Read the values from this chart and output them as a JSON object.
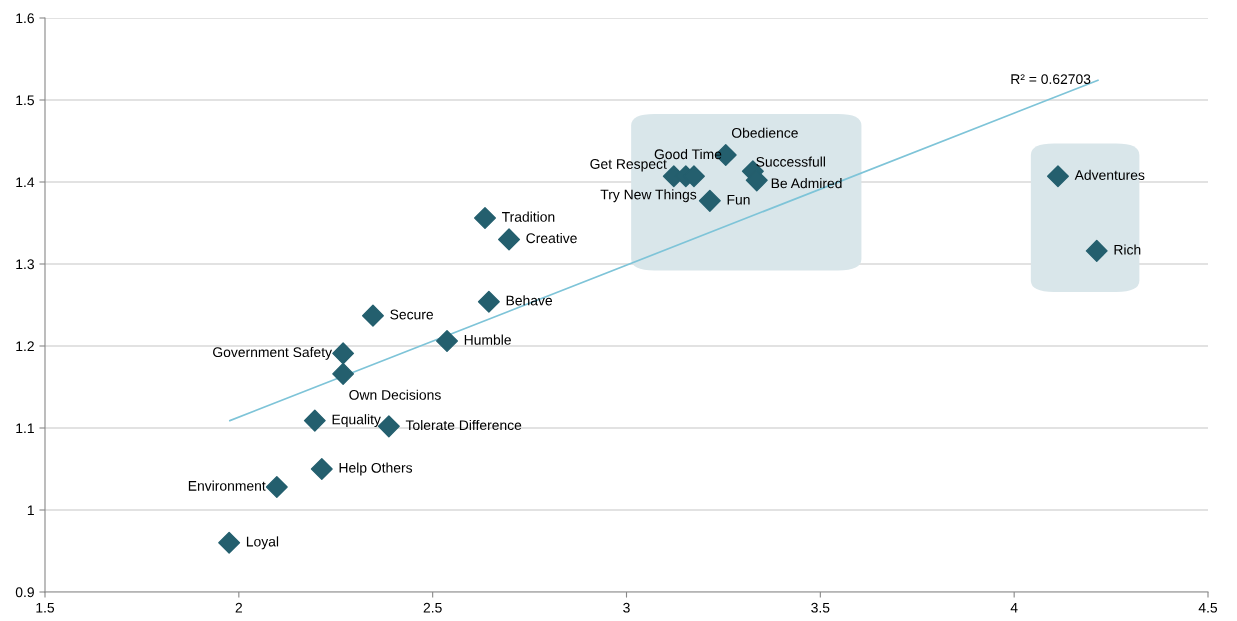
{
  "chart_data": {
    "type": "scatter",
    "series": [
      {
        "color": "#245f6e",
        "marker": "diamond",
        "x": [
          1.975,
          2.098,
          2.214,
          2.196,
          2.387,
          2.269,
          2.269,
          2.346,
          2.537,
          2.645,
          2.635,
          2.697,
          3.122,
          3.153,
          3.174,
          3.256,
          3.326,
          3.336,
          3.215,
          4.113,
          4.213
        ],
        "values": [
          0.96,
          1.028,
          1.05,
          1.109,
          1.102,
          1.166,
          1.191,
          1.237,
          1.206,
          1.254,
          1.356,
          1.33,
          1.407,
          1.407,
          1.407,
          1.433,
          1.413,
          1.402,
          1.377,
          1.407,
          1.316
        ]
      },
      {
        "type": "line",
        "color": "#7ec4d8",
        "marker": "none",
        "x": [
          1.977,
          4.216
        ],
        "values": [
          1.109,
          1.524
        ]
      }
    ],
    "annotations": [
      {
        "text": "Loyal",
        "x": 1.975,
        "y": 0.96
      },
      {
        "text": "Environment",
        "x": 2.098,
        "y": 1.028
      },
      {
        "text": "Help Others",
        "x": 2.214,
        "y": 1.05
      },
      {
        "text": "Equality",
        "x": 2.196,
        "y": 1.109
      },
      {
        "text": "Tolerate Difference",
        "x": 2.387,
        "y": 1.102
      },
      {
        "text": "Own Decisions",
        "x": 2.269,
        "y": 1.166
      },
      {
        "text": "Government Safety",
        "x": 2.269,
        "y": 1.191
      },
      {
        "text": "Secure",
        "x": 2.346,
        "y": 1.237
      },
      {
        "text": "Humble",
        "x": 2.537,
        "y": 1.206
      },
      {
        "text": "Behave",
        "x": 2.645,
        "y": 1.254
      },
      {
        "text": "Tradition",
        "x": 2.635,
        "y": 1.356
      },
      {
        "text": "Creative",
        "x": 2.697,
        "y": 1.33
      },
      {
        "text": "Get Respect",
        "x": 3.122,
        "y": 1.407
      },
      {
        "text": "Good Time",
        "x": 3.153,
        "y": 1.407
      },
      {
        "text": "Try New Things",
        "x": 3.174,
        "y": 1.407
      },
      {
        "text": "Obedience",
        "x": 3.256,
        "y": 1.433
      },
      {
        "text": "Successfull",
        "x": 3.326,
        "y": 1.413
      },
      {
        "text": "Be Admired",
        "x": 3.336,
        "y": 1.402
      },
      {
        "text": "Fun",
        "x": 3.215,
        "y": 1.377
      },
      {
        "text": "Adventures",
        "x": 4.113,
        "y": 1.407
      },
      {
        "text": "Rich",
        "x": 4.213,
        "y": 1.316
      },
      {
        "text": "R² = 0.62703",
        "x": 4.216,
        "y": 1.524
      }
    ],
    "xlim": [
      1.5,
      4.5
    ],
    "xticks": [
      1.5,
      2,
      2.5,
      3,
      3.5,
      4,
      4.5
    ],
    "ylim": [
      0.9,
      1.6
    ],
    "yticks": [
      0.9,
      1,
      1.1,
      1.2,
      1.3,
      1.4,
      1.5,
      1.6
    ],
    "grid": "y",
    "legend": false
  }
}
